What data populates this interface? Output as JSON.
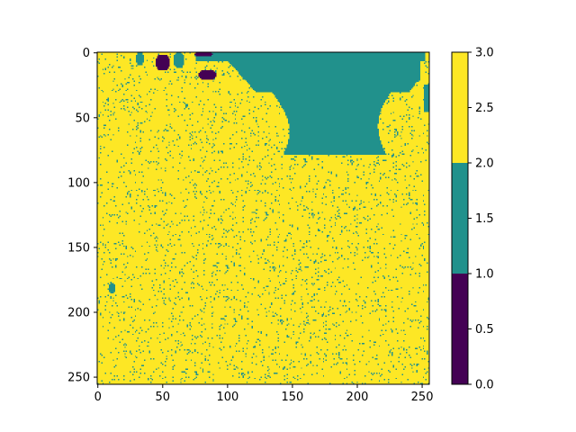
{
  "chart_data": {
    "type": "heatmap",
    "title": "",
    "xlabel": "",
    "ylabel": "",
    "image_size": [
      256,
      256
    ],
    "x_range": [
      0,
      255
    ],
    "y_range": [
      0,
      255
    ],
    "y_axis_inverted": true,
    "x_ticks": [
      0,
      50,
      100,
      150,
      200,
      250
    ],
    "y_ticks": [
      0,
      50,
      100,
      150,
      200,
      250
    ],
    "grid": false,
    "classes": [
      {
        "value": 0,
        "range": [
          0.0,
          1.0
        ],
        "color": "#440154"
      },
      {
        "value": 1,
        "range": [
          1.0,
          2.0
        ],
        "color": "#21918c"
      },
      {
        "value": 2,
        "range": [
          2.0,
          3.0
        ],
        "color": "#fde725"
      }
    ],
    "background_class": 2,
    "noise_fraction_class1": 0.05,
    "regions": [
      {
        "class": 1,
        "description": "large region at top",
        "x": [
          76,
          254
        ],
        "y": [
          0,
          78
        ]
      },
      {
        "class": 1,
        "description": "small patch",
        "x": [
          9,
          13
        ],
        "y": [
          178,
          185
        ]
      },
      {
        "class": 1,
        "description": "small patch",
        "x": [
          30,
          35
        ],
        "y": [
          0,
          9
        ]
      },
      {
        "class": 1,
        "description": "small patch",
        "x": [
          59,
          66
        ],
        "y": [
          0,
          11
        ]
      },
      {
        "class": 0,
        "description": "small patch",
        "x": [
          45,
          55
        ],
        "y": [
          2,
          13
        ]
      },
      {
        "class": 0,
        "description": "small patch",
        "x": [
          78,
          91
        ],
        "y": [
          14,
          20
        ]
      },
      {
        "class": 0,
        "description": "small patch",
        "x": [
          75,
          88
        ],
        "y": [
          0,
          2
        ]
      }
    ],
    "colorbar": {
      "range": [
        0.0,
        3.0
      ],
      "boundaries": [
        0.0,
        1.0,
        2.0,
        3.0
      ],
      "ticks": [
        0.0,
        0.5,
        1.0,
        1.5,
        2.0,
        2.5,
        3.0
      ],
      "tick_labels": [
        "0.0",
        "0.5",
        "1.0",
        "1.5",
        "2.0",
        "2.5",
        "3.0"
      ],
      "placement": "right"
    }
  }
}
